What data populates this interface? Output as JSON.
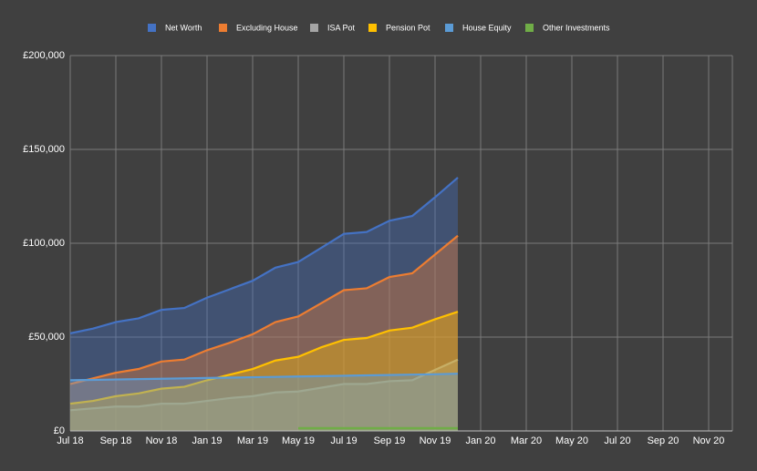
{
  "chart_data": {
    "type": "area",
    "categories": [
      "Jul 18",
      null,
      "Sep 18",
      null,
      "Nov 18",
      null,
      "Jan 19",
      null,
      "Mar 19",
      null,
      "May 19",
      null,
      "Jul 19",
      null,
      "Sep 19",
      null,
      "Nov 19",
      null,
      "Jan 20",
      null,
      "Mar 20",
      null,
      "May 20",
      null,
      "Jul 20",
      null,
      "Sep 20",
      null,
      "Nov 20",
      null
    ],
    "series": [
      {
        "name": "Net Worth",
        "color": "#4472c4",
        "values": [
          52000,
          54500,
          58000,
          60000,
          64500,
          65500,
          71000,
          75500,
          80000,
          87000,
          90000,
          97500,
          105000,
          106000,
          112000,
          114500,
          124500,
          135000,
          null,
          null,
          null,
          null,
          null,
          null,
          null,
          null,
          null,
          null,
          null,
          null
        ]
      },
      {
        "name": "Excluding House",
        "color": "#ed7d31",
        "values": [
          25000,
          28000,
          31000,
          33000,
          37000,
          38000,
          43000,
          47000,
          51500,
          58000,
          61000,
          68000,
          75000,
          76000,
          82000,
          84000,
          94000,
          104000,
          null,
          null,
          null,
          null,
          null,
          null,
          null,
          null,
          null,
          null,
          null,
          null
        ]
      },
      {
        "name": "ISA Pot",
        "color": "#a5a5a5",
        "values": [
          11000,
          12000,
          13000,
          13000,
          14500,
          14500,
          16000,
          17500,
          18500,
          20500,
          21000,
          23000,
          25000,
          25000,
          26500,
          27000,
          32500,
          38000,
          null,
          null,
          null,
          null,
          null,
          null,
          null,
          null,
          null,
          null,
          null,
          null
        ]
      },
      {
        "name": "Pension Pot",
        "color": "#ffc000",
        "values": [
          14500,
          16000,
          18500,
          20000,
          22500,
          23500,
          27000,
          30000,
          33000,
          37500,
          39500,
          44500,
          48500,
          49500,
          53500,
          55000,
          59500,
          63500,
          null,
          null,
          null,
          null,
          null,
          null,
          null,
          null,
          null,
          null,
          null,
          null
        ]
      },
      {
        "name": "House Equity",
        "color": "#5b9bd5",
        "values": [
          27000,
          27200,
          27400,
          27600,
          27800,
          28000,
          28200,
          28400,
          28600,
          28800,
          29000,
          29200,
          29400,
          29600,
          29800,
          30000,
          30200,
          30500,
          null,
          null,
          null,
          null,
          null,
          null,
          null,
          null,
          null,
          null,
          null,
          null
        ]
      },
      {
        "name": "Other Investments",
        "color": "#70ad47",
        "values": [
          null,
          null,
          null,
          null,
          null,
          null,
          null,
          null,
          null,
          null,
          1500,
          1500,
          1500,
          1500,
          1500,
          1500,
          1500,
          1500,
          null,
          null,
          null,
          null,
          null,
          null,
          null,
          null,
          null,
          null,
          null,
          null
        ]
      }
    ],
    "ylim": [
      0,
      200000
    ],
    "yticks": [
      {
        "value": 0,
        "label": "£0"
      },
      {
        "value": 50000,
        "label": "£50,000"
      },
      {
        "value": 100000,
        "label": "£100,000"
      },
      {
        "value": 150000,
        "label": "£150,000"
      },
      {
        "value": 200000,
        "label": "£200,000"
      }
    ],
    "grid": true,
    "legend": "top"
  }
}
